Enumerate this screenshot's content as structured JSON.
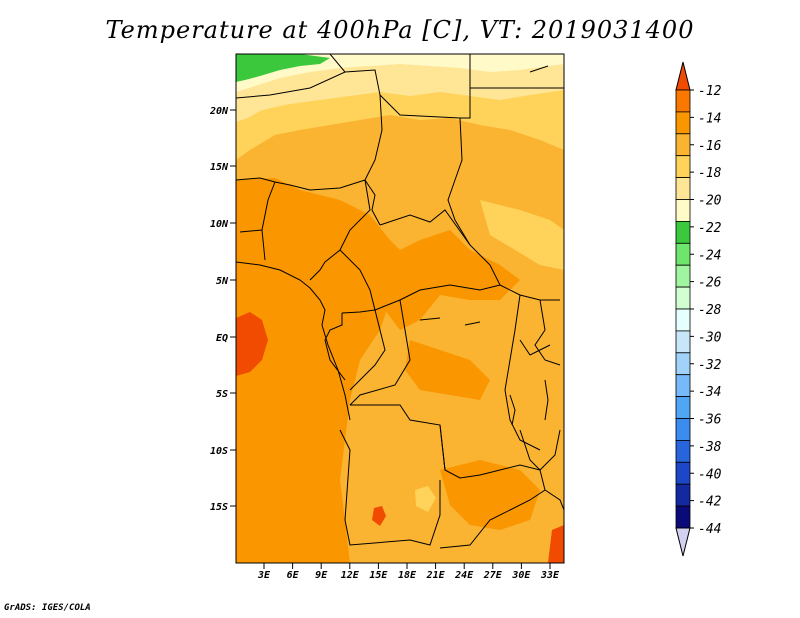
{
  "title": "Temperature at 400hPa [C], VT: 2019031400",
  "footer": "GrADS: IGES/COLA",
  "map": {
    "lon_labels": [
      "3E",
      "6E",
      "9E",
      "12E",
      "15E",
      "18E",
      "21E",
      "24E",
      "27E",
      "30E",
      "33E"
    ],
    "lat_labels": [
      "20N",
      "15N",
      "10N",
      "5N",
      "EQ",
      "5S",
      "10S",
      "15S"
    ]
  },
  "colorbar": {
    "labels": [
      "-12",
      "-14",
      "-16",
      "-18",
      "-20",
      "-22",
      "-24",
      "-26",
      "-28",
      "-30",
      "-32",
      "-34",
      "-36",
      "-38",
      "-40",
      "-42",
      "-44"
    ],
    "colors": [
      "#f04b00",
      "#fa7800",
      "#fa9600",
      "#fab432",
      "#ffd25a",
      "#ffe696",
      "#fffac8",
      "#3cc83c",
      "#6ee66e",
      "#a0f5a0",
      "#d2ffd2",
      "#e6ffff",
      "#c8e6fa",
      "#a0d2fa",
      "#78b9fa",
      "#50a5f5",
      "#3c8cf0",
      "#2864dc",
      "#1e46c8",
      "#1428a0",
      "#0a0a78",
      "#d2d2f0"
    ]
  },
  "field_colors": {
    "deep": "#f04b00",
    "c14": "#fa8c00",
    "c16": "#fab432",
    "c18": "#ffd25a",
    "c20": "#ffe696",
    "c22": "#fffac8",
    "c24": "#3cc83c"
  }
}
